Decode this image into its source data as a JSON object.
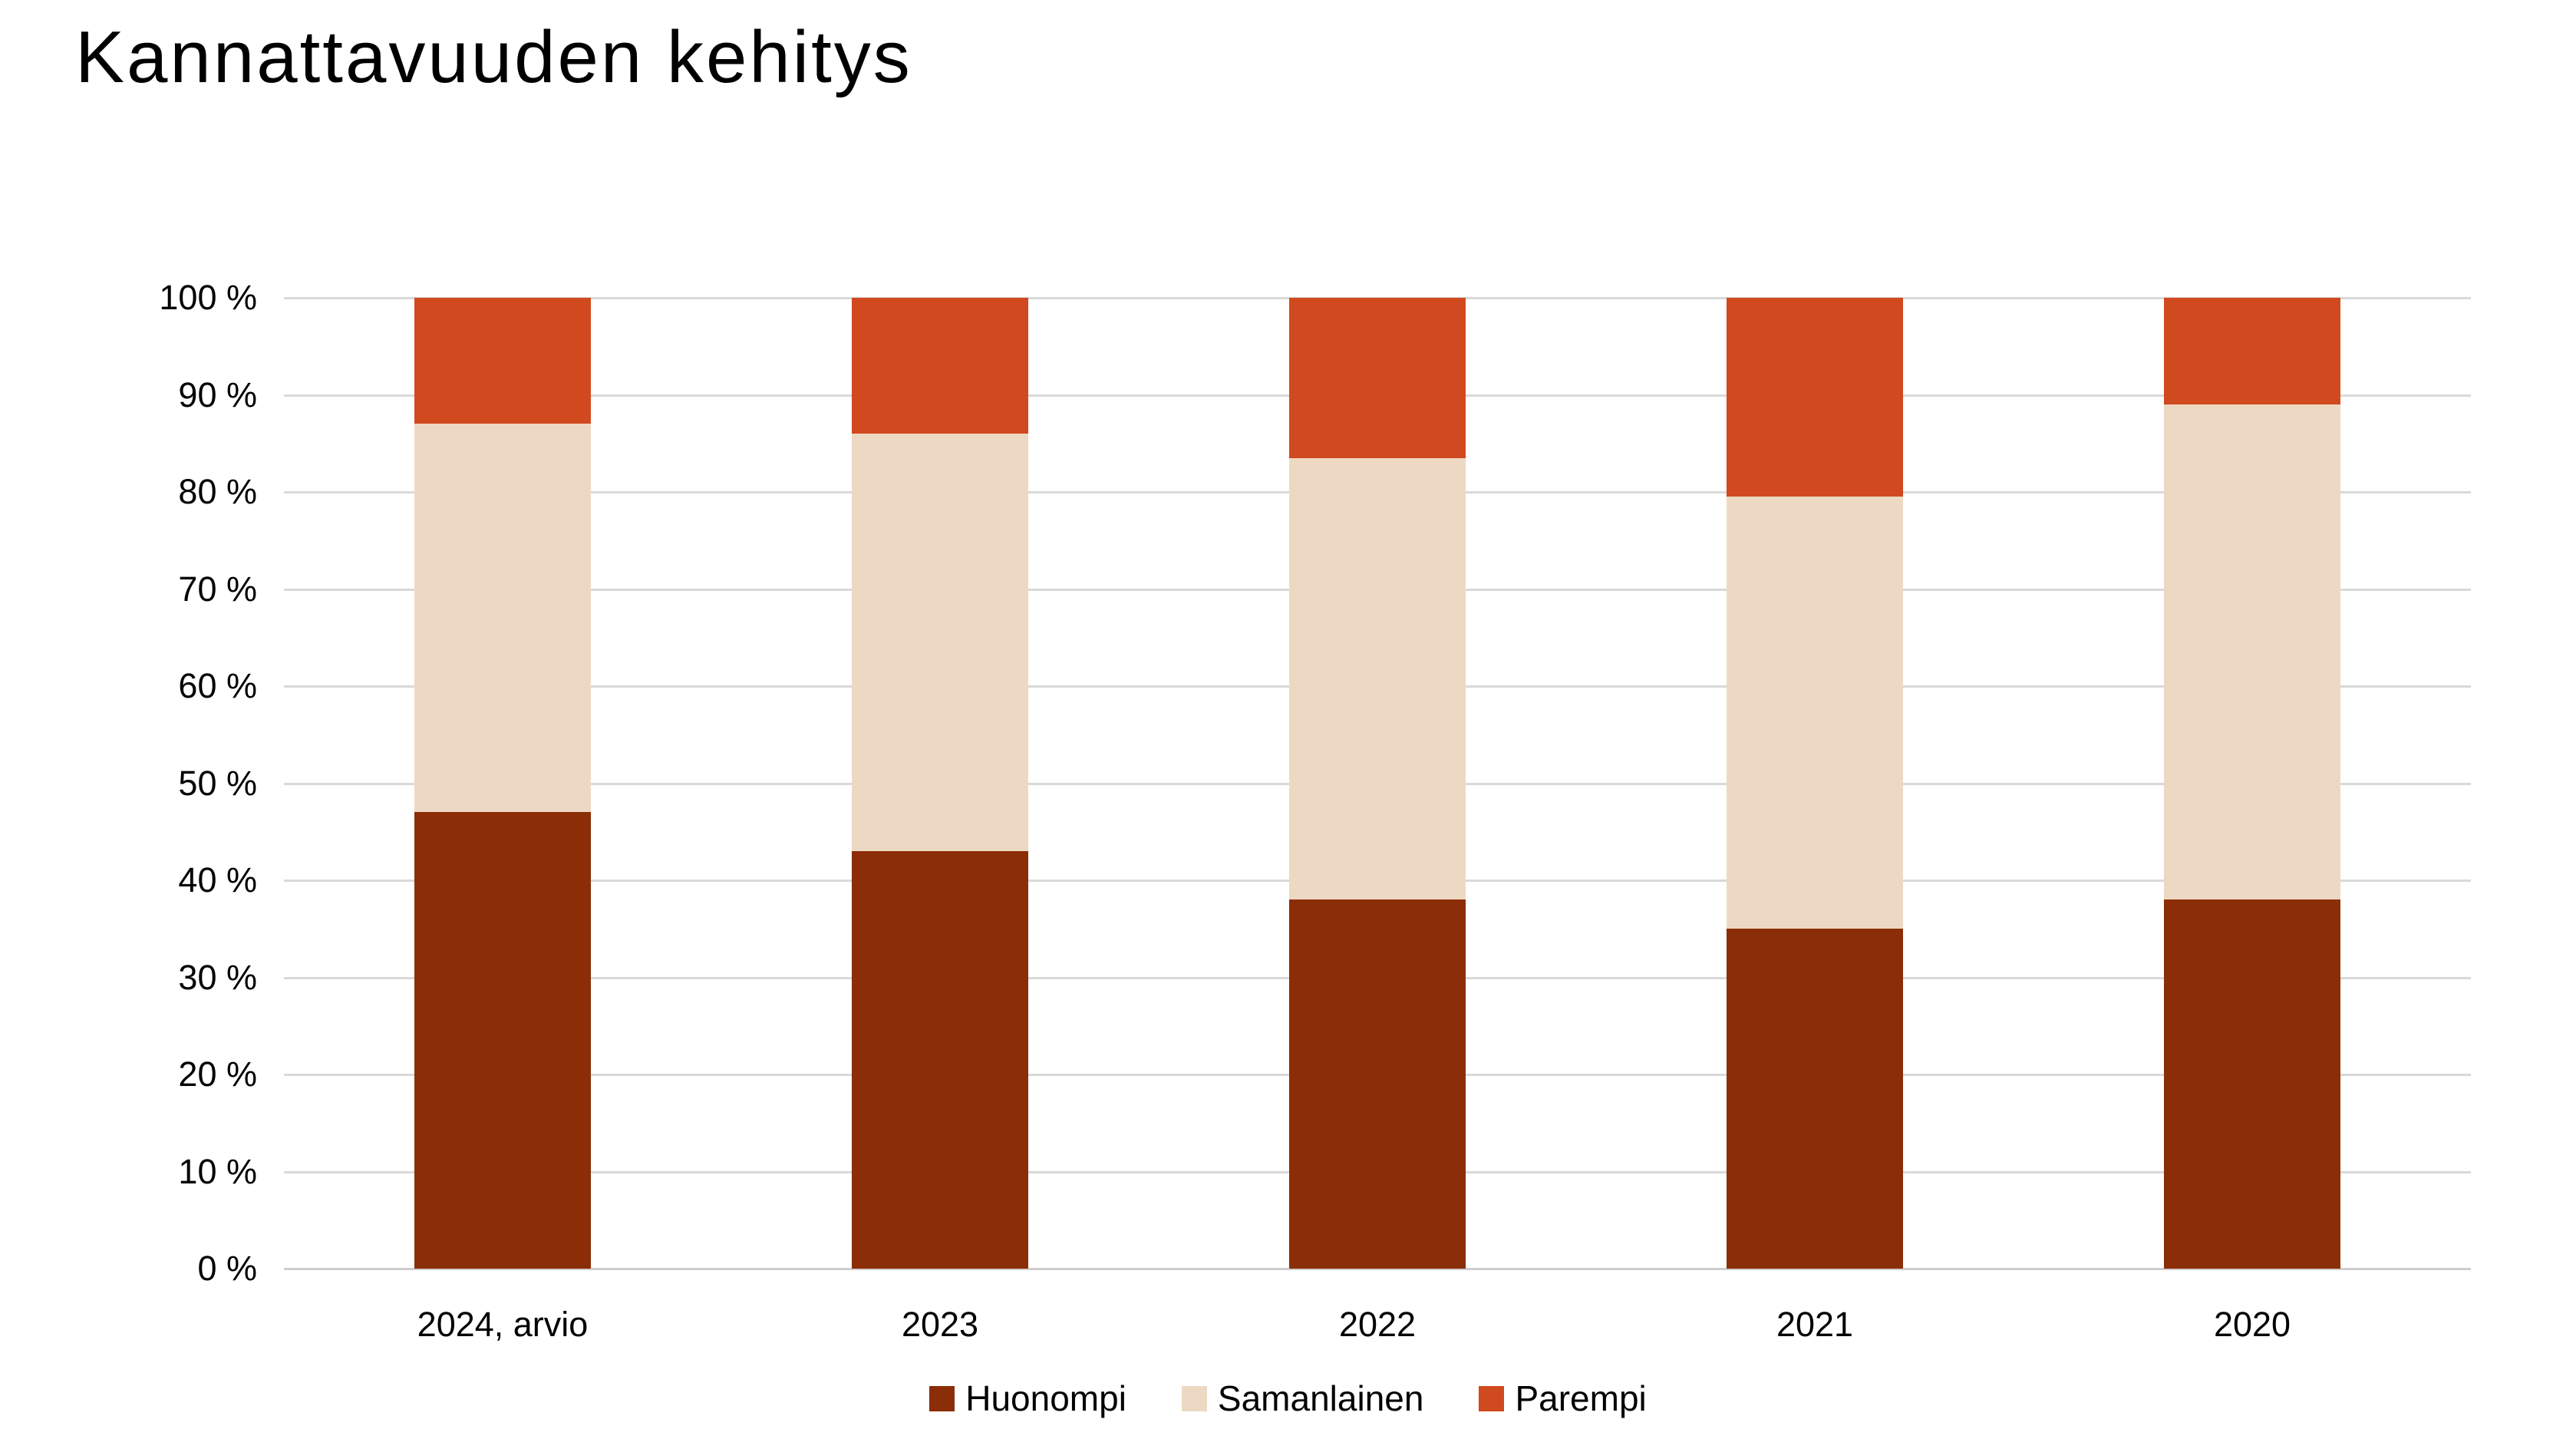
{
  "title": "Kannattavuuden kehitys",
  "chart_data": {
    "type": "bar",
    "stacked": true,
    "percent_stacked": true,
    "title": "Kannattavuuden kehitys",
    "xlabel": "",
    "ylabel": "",
    "ylim": [
      0,
      100
    ],
    "y_tick_step": 10,
    "y_ticks": [
      "100 %",
      "90 %",
      "80 %",
      "70 %",
      "60 %",
      "50 %",
      "40 %",
      "30 %",
      "20 %",
      "10 %",
      "0 %"
    ],
    "grid": "horizontal",
    "gridline_color": "#d9d9d9",
    "background_color": "#ffffff",
    "text_color": "#000000",
    "legend_position": "bottom",
    "categories": [
      "2024, arvio",
      "2023",
      "2022",
      "2021",
      "2020"
    ],
    "series": [
      {
        "name": "Huonompi",
        "color": "#8b2d07",
        "values": [
          47,
          43,
          38,
          35,
          38
        ]
      },
      {
        "name": "Samanlainen",
        "color": "#edd9c3",
        "values": [
          40,
          43,
          45.5,
          44.5,
          51
        ]
      },
      {
        "name": "Parempi",
        "color": "#d1491e",
        "values": [
          13,
          14,
          16.5,
          20.5,
          11
        ]
      }
    ]
  }
}
